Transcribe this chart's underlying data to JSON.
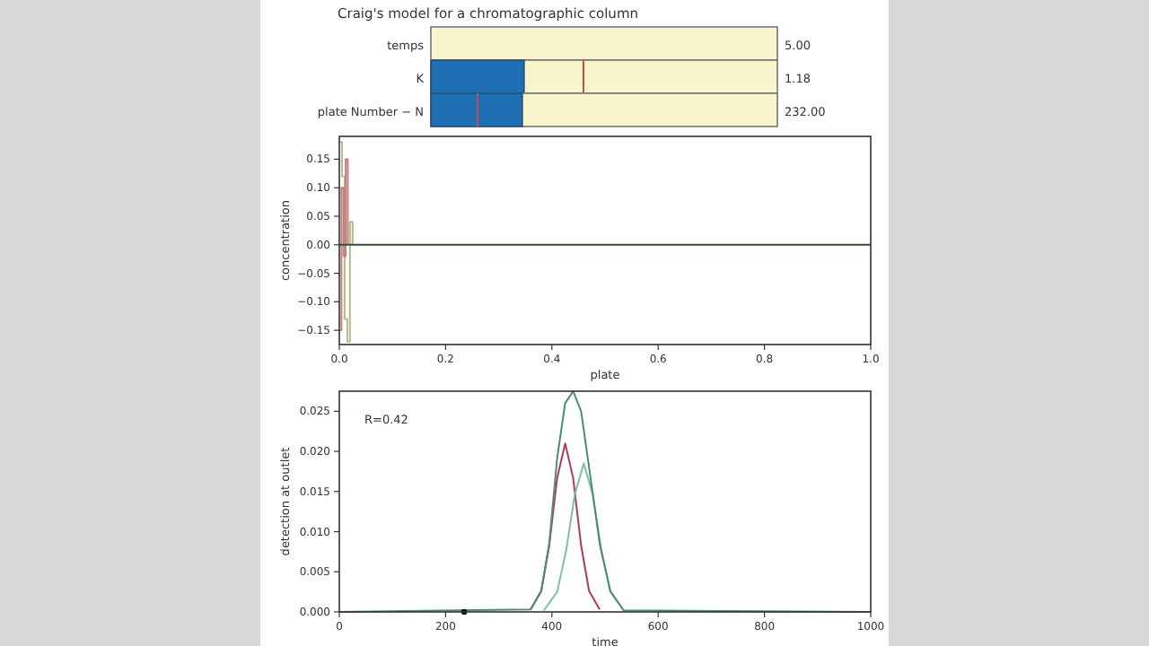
{
  "chart_data": [
    {
      "type": "other",
      "title": "Craig's model for a chromatographic column",
      "annotations": [
        "temps",
        "5.00",
        "K",
        "1.18",
        "plate Number − N",
        "232.00"
      ]
    },
    {
      "type": "line",
      "xlabel": "plate",
      "ylabel": "concentration",
      "xlim": [
        0,
        1
      ],
      "ylim": [
        -0.175,
        0.19
      ],
      "xticks": [
        {
          "value": 0,
          "label": "0.0"
        },
        {
          "value": 0.2,
          "label": "0.2"
        },
        {
          "value": 0.4,
          "label": "0.4"
        },
        {
          "value": 0.6,
          "label": "0.6"
        },
        {
          "value": 0.8,
          "label": "0.8"
        },
        {
          "value": 1,
          "label": "1.0"
        }
      ],
      "yticks": [
        {
          "value": -0.15,
          "label": "−0.15"
        },
        {
          "value": -0.1,
          "label": "−0.10"
        },
        {
          "value": -0.05,
          "label": "−0.05"
        },
        {
          "value": 0,
          "label": "0.00"
        },
        {
          "value": 0.05,
          "label": "0.05"
        },
        {
          "value": 0.1,
          "label": "0.10"
        },
        {
          "value": 0.15,
          "label": "0.15"
        }
      ],
      "series": [
        {
          "type": "step",
          "color": "#b5b98a",
          "x": [
            0,
            0.005,
            0.01,
            0.015,
            0.02,
            0.025
          ],
          "values": [
            0.18,
            0.12,
            -0.13,
            -0.17,
            0.04,
            0
          ]
        },
        {
          "type": "step",
          "color": "#c08080",
          "x": [
            0,
            0.004,
            0.008,
            0.012,
            0.016
          ],
          "values": [
            -0.15,
            0.1,
            -0.02,
            0.15,
            0
          ]
        },
        {
          "color": "#3d4a35",
          "x": [
            0,
            1
          ],
          "values": [
            0,
            0
          ]
        }
      ]
    },
    {
      "type": "line",
      "xlabel": "time",
      "ylabel": "detection at outlet",
      "xlim": [
        0,
        1000
      ],
      "ylim": [
        0,
        0.0275
      ],
      "xticks": [
        0,
        200,
        400,
        600,
        800,
        1000
      ],
      "yticks": [
        {
          "value": 0,
          "label": "0.000"
        },
        {
          "value": 0.005,
          "label": "0.005"
        },
        {
          "value": 0.01,
          "label": "0.010"
        },
        {
          "value": 0.015,
          "label": "0.015"
        },
        {
          "value": 0.02,
          "label": "0.020"
        },
        {
          "value": 0.025,
          "label": "0.025"
        }
      ],
      "annotations": [
        "R=0.42"
      ],
      "series": [
        {
          "color": "#b03a5a",
          "x": [
            360,
            380,
            395,
            410,
            425,
            440,
            455,
            470,
            490
          ],
          "values": [
            0.0003,
            0.0026,
            0.0083,
            0.0167,
            0.021,
            0.0167,
            0.0083,
            0.0026,
            0.0003
          ]
        },
        {
          "color": "#7cc0a0",
          "x": [
            385,
            410,
            427,
            443,
            460,
            477,
            493,
            510,
            535
          ],
          "values": [
            0.0002,
            0.0025,
            0.0077,
            0.0146,
            0.0185,
            0.0146,
            0.0077,
            0.0025,
            0.0002
          ]
        },
        {
          "color": "#4e8a7a",
          "x": [
            0,
            360,
            380,
            395,
            410,
            425,
            440,
            455,
            470,
            490,
            510,
            535,
            1000
          ],
          "values": [
            0,
            0.0003,
            0.0026,
            0.0085,
            0.0192,
            0.026,
            0.0275,
            0.025,
            0.018,
            0.0085,
            0.0026,
            0.0002,
            0
          ]
        },
        {
          "type": "scatter",
          "color": "#000000",
          "x": [
            235
          ],
          "values": [
            0
          ]
        }
      ]
    }
  ]
}
